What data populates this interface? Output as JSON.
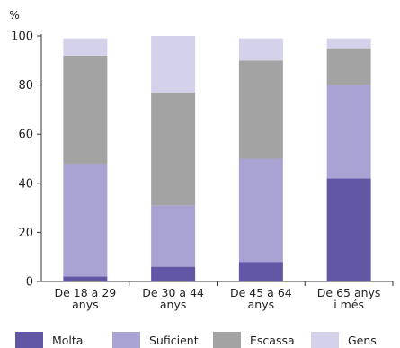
{
  "chart_data": {
    "type": "bar",
    "stacked": true,
    "unit": "%",
    "ylim": [
      0,
      100
    ],
    "yticks": [
      0,
      20,
      40,
      60,
      80,
      100
    ],
    "categories": [
      [
        "De 18 a 29",
        "anys"
      ],
      [
        "De 30 a 44",
        "anys"
      ],
      [
        "De 45 a 64",
        "anys"
      ],
      [
        "De 65 anys",
        "i més"
      ]
    ],
    "series": [
      {
        "name": "Molta",
        "color": "#6257a4",
        "values": [
          2,
          6,
          8,
          42
        ]
      },
      {
        "name": "Suficient",
        "color": "#a9a3d3",
        "values": [
          46,
          25,
          42,
          38
        ]
      },
      {
        "name": "Escassa",
        "color": "#a3a3a3",
        "values": [
          44,
          46,
          40,
          15
        ]
      },
      {
        "name": "Gens",
        "color": "#d4d1ea",
        "values": [
          7,
          23,
          9,
          4
        ]
      }
    ],
    "legend_position": "bottom"
  }
}
